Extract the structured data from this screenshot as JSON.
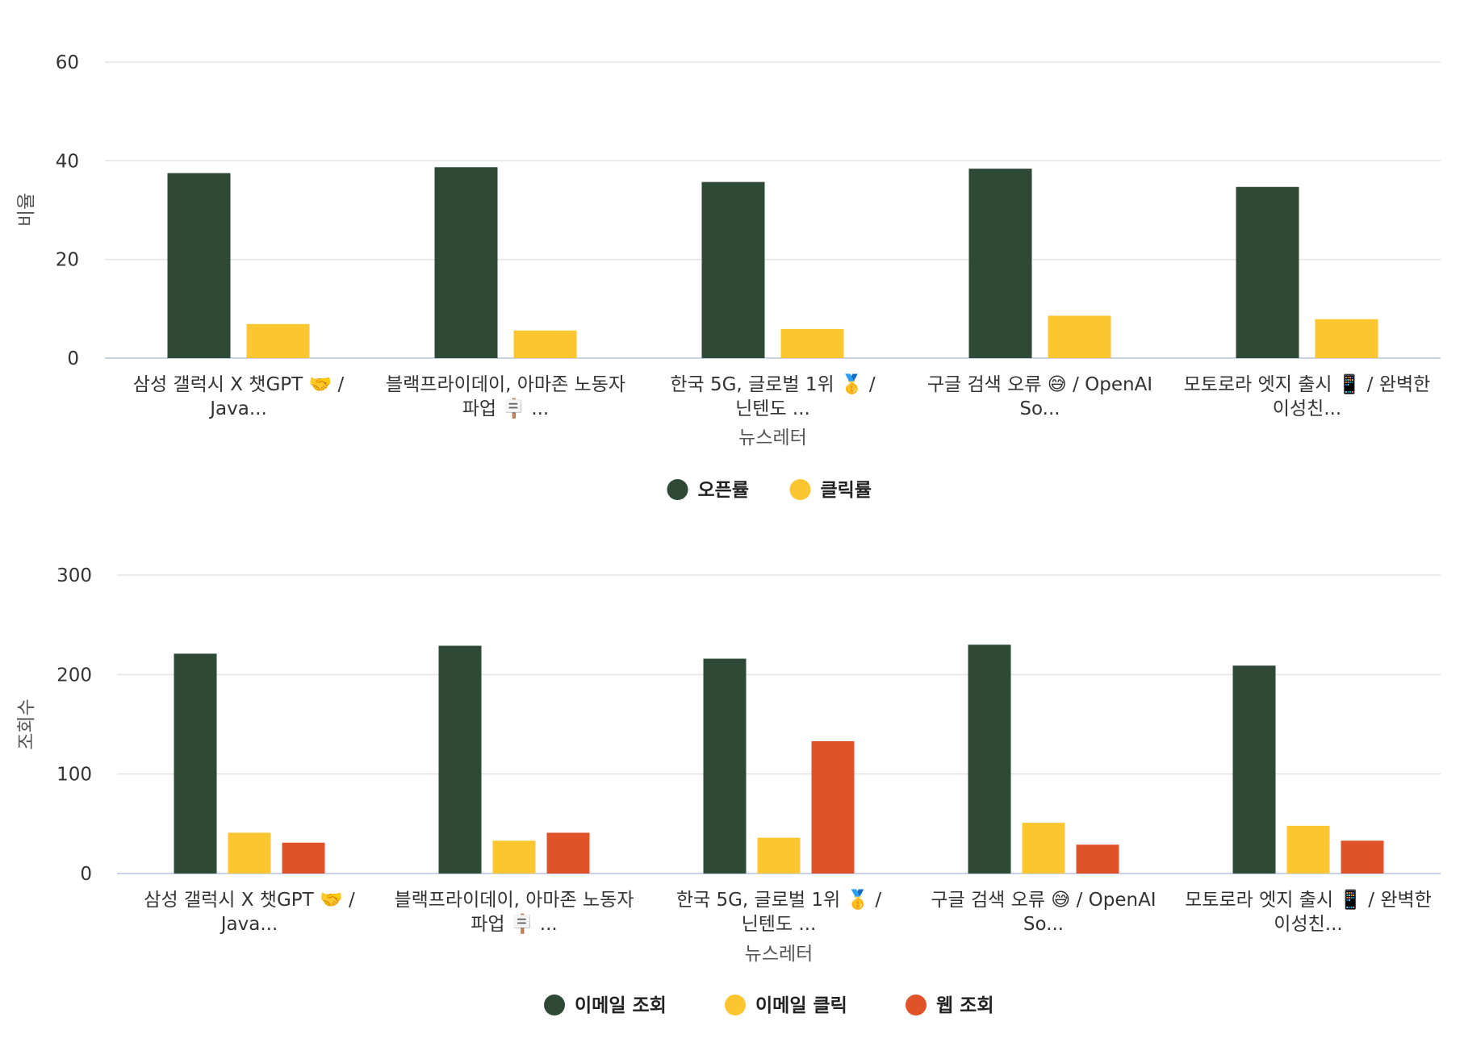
{
  "colors": {
    "open_rate": "#2e4a36",
    "click_rate": "#fcc631",
    "web_view": "#e05328"
  },
  "chart_data": [
    {
      "type": "bar",
      "categories": [
        [
          "삼성 갤럭시 X 챗GPT 🤝 /",
          "Java..."
        ],
        [
          "블랙프라이데이, 아마존 노동자",
          "파업 🪧 ..."
        ],
        [
          "한국 5G, 글로벌 1위 🥇 /",
          "닌텐도 ..."
        ],
        [
          "구글 검색 오류 😅 / OpenAI",
          "So..."
        ],
        [
          "모토로라 엣지 출시 📱 / 완벽한",
          "이성친..."
        ]
      ],
      "series": [
        {
          "name": "오픈률",
          "color": "#2e4a36",
          "values": [
            37.5,
            38.7,
            35.7,
            38.4,
            34.7
          ]
        },
        {
          "name": "클릭률",
          "color": "#fcc631",
          "values": [
            6.9,
            5.6,
            5.9,
            8.6,
            7.9
          ]
        }
      ],
      "xlabel": "뉴스레터",
      "ylabel": "비율",
      "ylim": [
        0,
        60
      ],
      "yticks": [
        0,
        20,
        40,
        60
      ],
      "grid": true,
      "legend_position": "bottom-center"
    },
    {
      "type": "bar",
      "categories": [
        [
          "삼성 갤럭시 X 챗GPT 🤝 /",
          "Java..."
        ],
        [
          "블랙프라이데이, 아마존 노동자",
          "파업 🪧 ..."
        ],
        [
          "한국 5G, 글로벌 1위 🥇 /",
          "닌텐도 ..."
        ],
        [
          "구글 검색 오류 😅 / OpenAI",
          "So..."
        ],
        [
          "모토로라 엣지 출시 📱 / 완벽한",
          "이성친..."
        ]
      ],
      "series": [
        {
          "name": "이메일 조회",
          "color": "#2e4a36",
          "values": [
            221,
            229,
            216,
            230,
            209
          ]
        },
        {
          "name": "이메일 클릭",
          "color": "#fcc631",
          "values": [
            41,
            33,
            36,
            51,
            48
          ]
        },
        {
          "name": "웹 조회",
          "color": "#e05328",
          "values": [
            31,
            41,
            133,
            29,
            33
          ]
        }
      ],
      "xlabel": "뉴스레터",
      "ylabel": "조회수",
      "ylim": [
        0,
        300
      ],
      "yticks": [
        0,
        100,
        200,
        300
      ],
      "grid": true,
      "legend_position": "bottom-center"
    }
  ]
}
